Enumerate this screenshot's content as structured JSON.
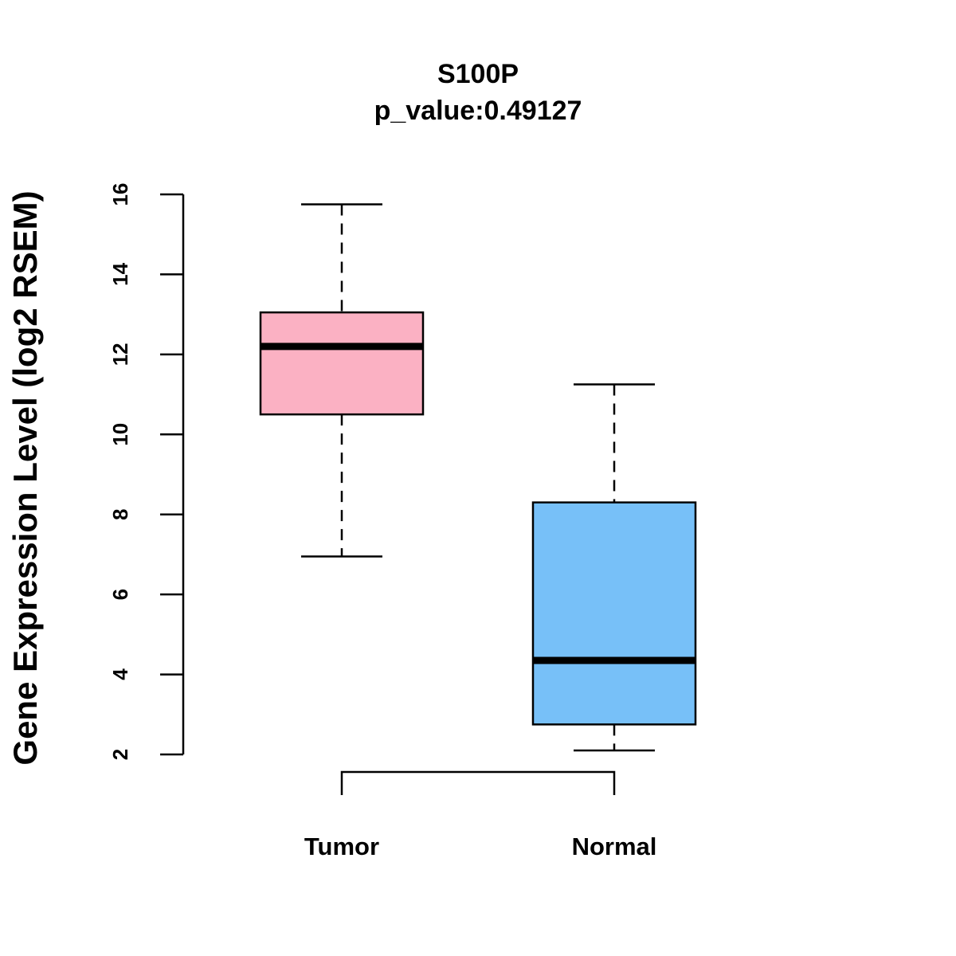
{
  "chart_data": {
    "type": "boxplot",
    "title": "S100P",
    "subtitle": "p_value:0.49127",
    "ylabel": "Gene Expression Level (log2 RSEM)",
    "xlabel": "",
    "ylim": [
      2,
      16
    ],
    "yticks": [
      2,
      4,
      6,
      8,
      10,
      12,
      14,
      16
    ],
    "categories": [
      "Tumor",
      "Normal"
    ],
    "series": [
      {
        "name": "Tumor",
        "color": "#FBB1C3",
        "whisker_low": 6.95,
        "q1": 10.5,
        "median": 12.2,
        "q3": 13.05,
        "whisker_high": 15.75
      },
      {
        "name": "Normal",
        "color": "#77C0F8",
        "whisker_low": 2.1,
        "q1": 2.75,
        "median": 4.35,
        "q3": 8.3,
        "whisker_high": 11.25
      }
    ],
    "comparison_bracket": [
      "Tumor",
      "Normal"
    ]
  }
}
